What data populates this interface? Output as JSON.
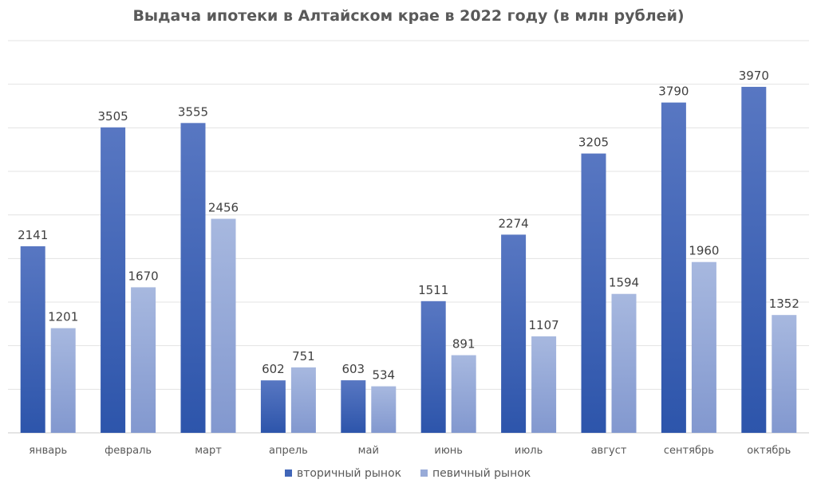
{
  "chart_data": {
    "type": "bar",
    "title": "Выдача ипотеки в Алтайском крае в 2022 году (в млн рублей)",
    "categories": [
      "январь",
      "февраль",
      "март",
      "апрель",
      "май",
      "июнь",
      "июль",
      "август",
      "сентябрь",
      "октябрь"
    ],
    "series": [
      {
        "name": "вторичный рынок",
        "color": "#4166b8",
        "values": [
          2141,
          3505,
          3555,
          602,
          603,
          1511,
          2274,
          3205,
          3790,
          3970
        ]
      },
      {
        "name": "певичный рынок",
        "color": "#98abd8",
        "values": [
          1201,
          1670,
          2456,
          751,
          534,
          891,
          1107,
          1594,
          1960,
          1352
        ]
      }
    ],
    "ylim": [
      0,
      4500
    ],
    "grid": true,
    "legend_position": "bottom",
    "data_labels": true
  }
}
